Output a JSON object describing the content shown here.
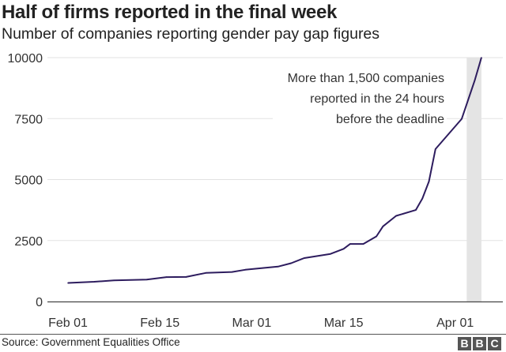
{
  "chart_data": {
    "type": "line",
    "title": "Half of firms reported in the final week",
    "subtitle": "Number of companies reporting gender pay gap figures",
    "xlabel": "",
    "ylabel": "",
    "ylim": [
      0,
      10000
    ],
    "yticks": [
      "10000",
      "7500",
      "5000",
      "2500",
      "0"
    ],
    "ytick_values": [
      10000,
      7500,
      5000,
      2500,
      0
    ],
    "xticks": [
      "Feb 01",
      "Feb 15",
      "Mar 01",
      "Mar 15",
      "Apr 01"
    ],
    "grid": true,
    "line_color": "#2d1c5e",
    "x": [
      "Feb 01",
      "Feb 05",
      "Feb 08",
      "Feb 13",
      "Feb 16",
      "Feb 19",
      "Feb 22",
      "Feb 26",
      "Feb 28",
      "Mar 05",
      "Mar 07",
      "Mar 09",
      "Mar 13",
      "Mar 15",
      "Mar 16",
      "Mar 18",
      "Mar 20",
      "Mar 21",
      "Mar 23",
      "Mar 26",
      "Mar 27",
      "Mar 28",
      "Mar 29",
      "Apr 02",
      "Apr 04",
      "Apr 05"
    ],
    "values": [
      760,
      810,
      865,
      900,
      1000,
      1005,
      1170,
      1210,
      1300,
      1430,
      1570,
      1780,
      1950,
      2160,
      2360,
      2360,
      2670,
      3080,
      3510,
      3750,
      4220,
      4920,
      6250,
      7490,
      9080,
      10000
    ],
    "highlight_band": [
      "Apr 03",
      "Apr 05"
    ],
    "annotation": [
      "More than 1,500 companies",
      "reported in the 24 hours",
      "before the deadline"
    ]
  },
  "footer": {
    "source": "Source: Government Equalities Office",
    "logo": [
      "B",
      "B",
      "C"
    ]
  }
}
